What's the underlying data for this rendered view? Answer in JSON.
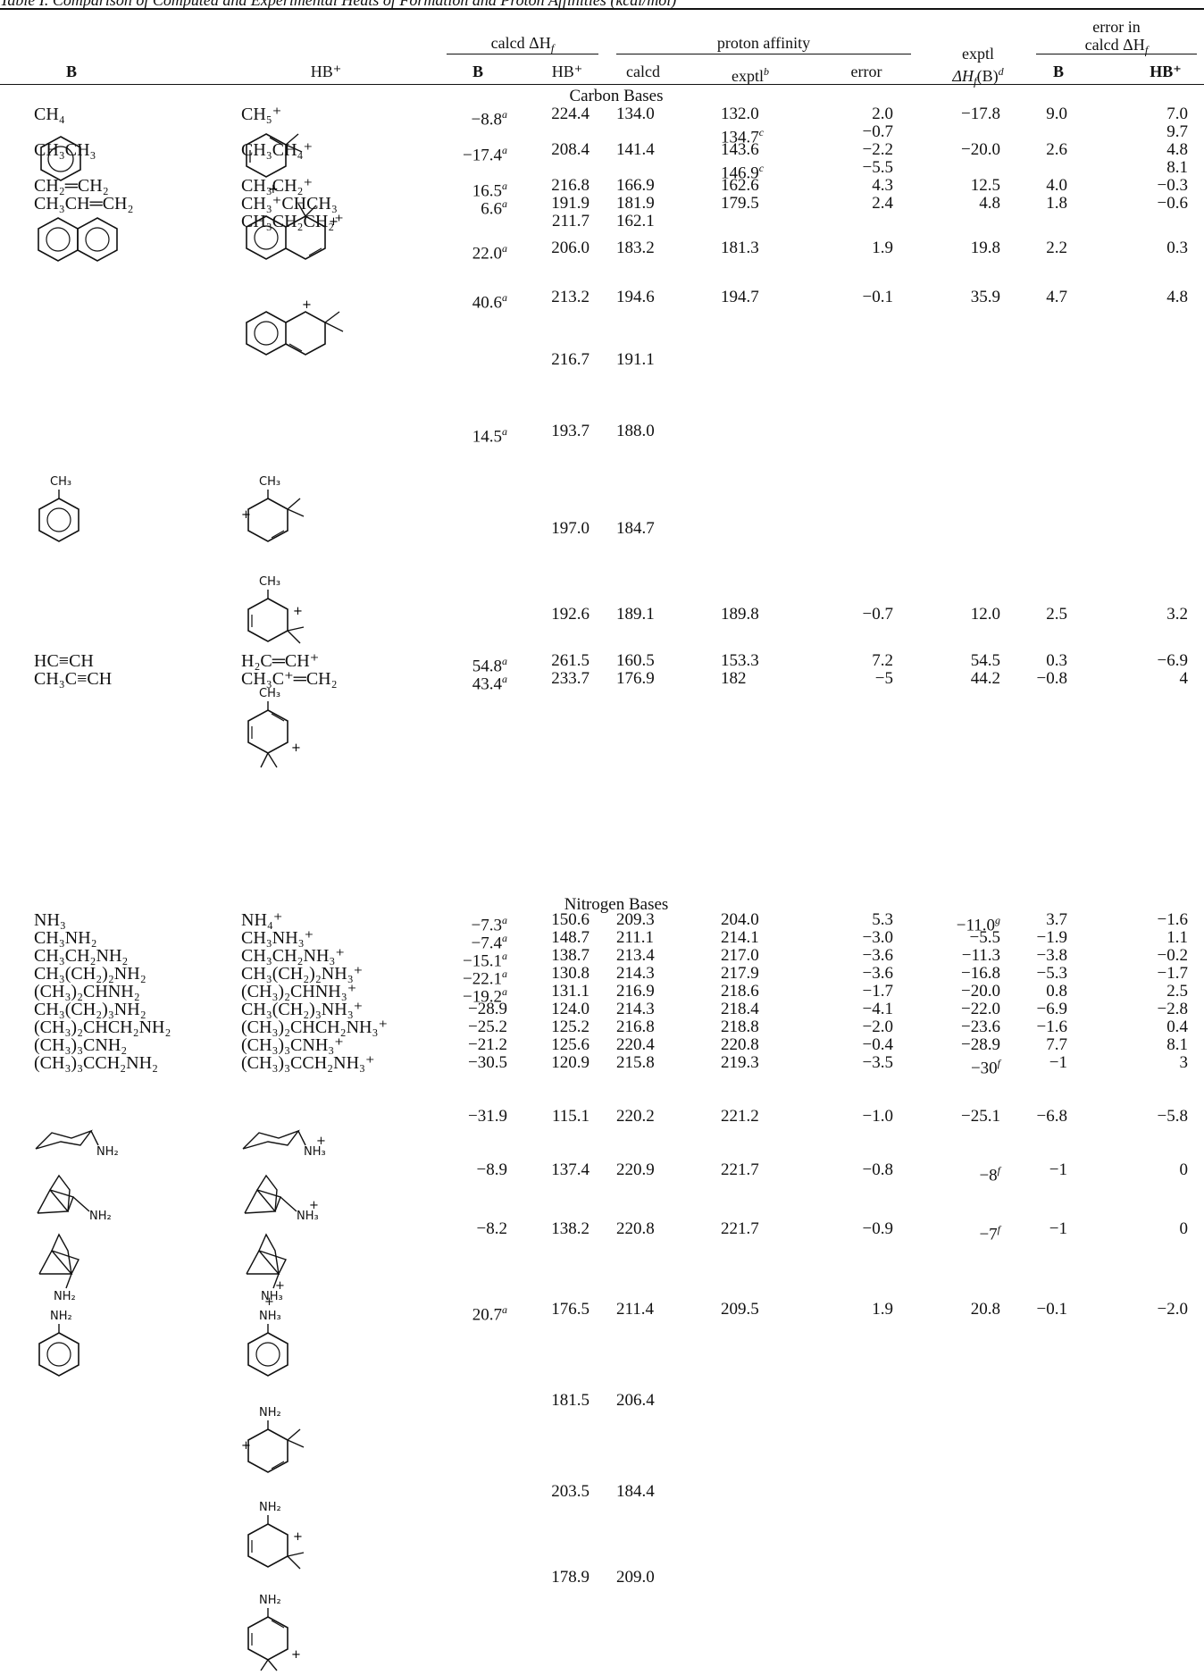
{
  "caption": "Table I. Comparison of Computed and Experimental Heats of Formation and Proton Affinities (kcal/mol)",
  "headers": {
    "col_B": "B",
    "col_HB": "HB⁺",
    "group_calcd": "calcd ΔH",
    "group_calcd_sub": "f",
    "calcd_B": "B",
    "calcd_HB": "HB⁺",
    "group_pa": "proton affinity",
    "pa_calcd": "calcd",
    "pa_exptl": "exptl",
    "pa_exptl_note": "b",
    "pa_error": "error",
    "exptl_line1": "exptl",
    "exptl_line2": "ΔH",
    "exptl_line2_sub": "f",
    "exptl_line2_tail": "(B)",
    "exptl_note": "d",
    "group_err_line1": "error in",
    "group_err_line2": "calcd ΔH",
    "group_err_sub": "f",
    "err_B": "B",
    "err_HB": "HB⁺"
  },
  "sections": {
    "carbon": "Carbon Bases",
    "nitrogen": "Nitrogen Bases"
  },
  "rows": [
    {
      "b": "CH₄",
      "hb": "CH₅⁺",
      "dhb": "−8.8",
      "dhb_n": "a",
      "dhhb": "224.4",
      "pac": "134.0",
      "pae": "132.0",
      "err": "2.0",
      "exp": "−17.8",
      "eb": "9.0",
      "ehb": "7.0"
    },
    {
      "pae": "134.7",
      "pae_n": "c",
      "err": "−0.7",
      "ehb": "9.7"
    },
    {
      "b": "CH₃CH₃",
      "hb": "CH₃CH₄⁺",
      "dhb": "−17.4",
      "dhb_n": "a",
      "dhhb": "208.4",
      "pac": "141.4",
      "pae": "143.6",
      "err": "−2.2",
      "exp": "−20.0",
      "eb": "2.6",
      "ehb": "4.8"
    },
    {
      "pae": "146.9",
      "pae_n": "c",
      "err": "−5.5",
      "ehb": "8.1"
    },
    {
      "b": "CH₂═CH₂",
      "hb": "CH₃CH₂⁺",
      "dhb": "16.5",
      "dhb_n": "a",
      "dhhb": "216.8",
      "pac": "166.9",
      "pae": "162.6",
      "err": "4.3",
      "exp": "12.5",
      "eb": "4.0",
      "ehb": "−0.3"
    },
    {
      "b": "CH₃CH═CH₂",
      "hb": "CH₃⁺CHCH₃",
      "dhb": "6.6",
      "dhb_n": "a",
      "dhhb": "191.9",
      "pac": "181.9",
      "pae": "179.5",
      "err": "2.4",
      "exp": "4.8",
      "eb": "1.8",
      "ehb": "−0.6"
    },
    {
      "hb": "CH₃CH₂CH₂⁺",
      "dhhb": "211.7",
      "pac": "162.1"
    },
    {
      "dhb": "22.0",
      "dhb_n": "a",
      "dhhb": "206.0",
      "pac": "183.2",
      "pae": "181.3",
      "err": "1.9",
      "exp": "19.8",
      "eb": "2.2",
      "ehb": "0.3"
    },
    {
      "dhb": "40.6",
      "dhb_n": "a",
      "dhhb": "213.2",
      "pac": "194.6",
      "pae": "194.7",
      "err": "−0.1",
      "exp": "35.9",
      "eb": "4.7",
      "ehb": "4.8"
    },
    {
      "dhhb": "216.7",
      "pac": "191.1"
    },
    {
      "dhb": "14.5",
      "dhb_n": "a",
      "dhhb": "193.7",
      "pac": "188.0"
    },
    {
      "dhhb": "197.0",
      "pac": "184.7"
    },
    {
      "dhhb": "192.6",
      "pac": "189.1",
      "pae": "189.8",
      "err": "−0.7",
      "exp": "12.0",
      "eb": "2.5",
      "ehb": "3.2"
    },
    {
      "b": "HC≡CH",
      "hb": "H₂C═CH⁺",
      "dhb": "54.8",
      "dhb_n": "a",
      "dhhb": "261.5",
      "pac": "160.5",
      "pae": "153.3",
      "err": "7.2",
      "exp": "54.5",
      "eb": "0.3",
      "ehb": "−6.9"
    },
    {
      "b": "CH₃C≡CH",
      "hb": "CH₃C⁺═CH₂",
      "dhb": "43.4",
      "dhb_n": "a",
      "dhhb": "233.7",
      "pac": "176.9",
      "pae": "182",
      "err": "−5",
      "exp": "44.2",
      "eb": "−0.8",
      "ehb": "4"
    },
    {
      "b": "NH₃",
      "hb": "NH₄⁺",
      "dhb": "−7.3",
      "dhb_n": "a",
      "dhhb": "150.6",
      "pac": "209.3",
      "pae": "204.0",
      "err": "5.3",
      "exp": "−11.0",
      "exp_n": "g",
      "eb": "3.7",
      "ehb": "−1.6"
    },
    {
      "b": "CH₃NH₂",
      "hb": "CH₃NH₃⁺",
      "dhb": "−7.4",
      "dhb_n": "a",
      "dhhb": "148.7",
      "pac": "211.1",
      "pae": "214.1",
      "err": "−3.0",
      "exp": "−5.5",
      "eb": "−1.9",
      "ehb": "1.1"
    },
    {
      "b": "CH₃CH₂NH₂",
      "hb": "CH₃CH₂NH₃⁺",
      "dhb": "−15.1",
      "dhb_n": "a",
      "dhhb": "138.7",
      "pac": "213.4",
      "pae": "217.0",
      "err": "−3.6",
      "exp": "−11.3",
      "eb": "−3.8",
      "ehb": "−0.2"
    },
    {
      "b": "CH₃(CH₂)₂NH₂",
      "hb": "CH₃(CH₂)₂NH₃⁺",
      "dhb": "−22.1",
      "dhb_n": "a",
      "dhhb": "130.8",
      "pac": "214.3",
      "pae": "217.9",
      "err": "−3.6",
      "exp": "−16.8",
      "eb": "−5.3",
      "ehb": "−1.7"
    },
    {
      "b": "(CH₃)₂CHNH₂",
      "hb": "(CH₃)₂CHNH₃⁺",
      "dhb": "−19.2",
      "dhb_n": "a",
      "dhhb": "131.1",
      "pac": "216.9",
      "pae": "218.6",
      "err": "−1.7",
      "exp": "−20.0",
      "eb": "0.8",
      "ehb": "2.5"
    },
    {
      "b": "CH₃(CH₂)₃NH₂",
      "hb": "CH₃(CH₂)₃NH₃⁺",
      "dhb": "−28.9",
      "dhhb": "124.0",
      "pac": "214.3",
      "pae": "218.4",
      "err": "−4.1",
      "exp": "−22.0",
      "eb": "−6.9",
      "ehb": "−2.8"
    },
    {
      "b": "(CH₃)₂CHCH₂NH₂",
      "hb": "(CH₃)₂CHCH₂NH₃⁺",
      "dhb": "−25.2",
      "dhhb": "125.2",
      "pac": "216.8",
      "pae": "218.8",
      "err": "−2.0",
      "exp": "−23.6",
      "eb": "−1.6",
      "ehb": "0.4"
    },
    {
      "b": "(CH₃)₃CNH₂",
      "hb": "(CH₃)₃CNH₃⁺",
      "dhb": "−21.2",
      "dhhb": "125.6",
      "pac": "220.4",
      "pae": "220.8",
      "err": "−0.4",
      "exp": "−28.9",
      "eb": "7.7",
      "ehb": "8.1"
    },
    {
      "b": "(CH₃)₃CCH₂NH₂",
      "hb": "(CH₃)₃CCH₂NH₃⁺",
      "dhb": "−30.5",
      "dhhb": "120.9",
      "pac": "215.8",
      "pae": "219.3",
      "err": "−3.5",
      "exp": "−30",
      "exp_n": "f",
      "eb": "−1",
      "ehb": "3"
    },
    {
      "dhb": "−31.9",
      "dhhb": "115.1",
      "pac": "220.2",
      "pae": "221.2",
      "err": "−1.0",
      "exp": "−25.1",
      "eb": "−6.8",
      "ehb": "−5.8"
    },
    {
      "dhb": "−8.9",
      "dhhb": "137.4",
      "pac": "220.9",
      "pae": "221.7",
      "err": "−0.8",
      "exp": "−8",
      "exp_n": "f",
      "eb": "−1",
      "ehb": "0"
    },
    {
      "dhb": "−8.2",
      "dhhb": "138.2",
      "pac": "220.8",
      "pae": "221.7",
      "err": "−0.9",
      "exp": "−7",
      "exp_n": "f",
      "eb": "−1",
      "ehb": "0"
    },
    {
      "dhb": "20.7",
      "dhb_n": "a",
      "dhhb": "176.5",
      "pac": "211.4",
      "pae": "209.5",
      "err": "1.9",
      "exp": "20.8",
      "eb": "−0.1",
      "ehb": "−2.0"
    },
    {
      "dhhb": "181.5",
      "pac": "206.4"
    },
    {
      "dhhb": "203.5",
      "pac": "184.4"
    },
    {
      "dhhb": "178.9",
      "pac": "209.0"
    }
  ],
  "structure_labels": {
    "ch3": "CH₃",
    "nh2": "NH₂",
    "nh3": "NH₃",
    "plus": "+"
  }
}
